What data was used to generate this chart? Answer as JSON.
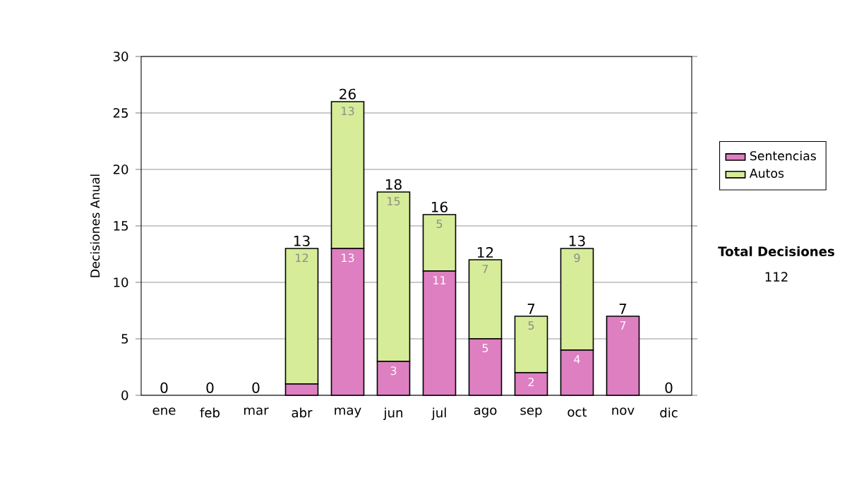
{
  "chart_data": {
    "type": "bar",
    "stacked": true,
    "ylabel": "Decisiones Anual",
    "categories": [
      "ene",
      "feb",
      "mar",
      "abr",
      "may",
      "jun",
      "jul",
      "ago",
      "sep",
      "oct",
      "nov",
      "dic"
    ],
    "series": [
      {
        "name": "Sentencias",
        "color": "#dd7fc0",
        "values": [
          0,
          0,
          0,
          1,
          13,
          3,
          11,
          5,
          2,
          4,
          7,
          0
        ],
        "value_labels": [
          null,
          null,
          null,
          null,
          "13",
          "3",
          "11",
          "5",
          "2",
          "4",
          "7",
          null
        ]
      },
      {
        "name": "Autos",
        "color": "#d6ec98",
        "values": [
          0,
          0,
          0,
          12,
          13,
          15,
          5,
          7,
          5,
          9,
          0,
          0
        ],
        "value_labels": [
          null,
          null,
          null,
          "12",
          "13",
          "15",
          "5",
          "7",
          "5",
          "9",
          null,
          null
        ]
      }
    ],
    "totals": [
      "0",
      "0",
      "0",
      "13",
      "26",
      "18",
      "16",
      "12",
      "7",
      "13",
      "7",
      "0"
    ],
    "ylim": [
      0,
      30
    ],
    "yticks": [
      0,
      5,
      10,
      15,
      20,
      25,
      30
    ],
    "grid": "y",
    "legend": "right",
    "annotations": [
      "Total Decisiones",
      "112"
    ]
  }
}
